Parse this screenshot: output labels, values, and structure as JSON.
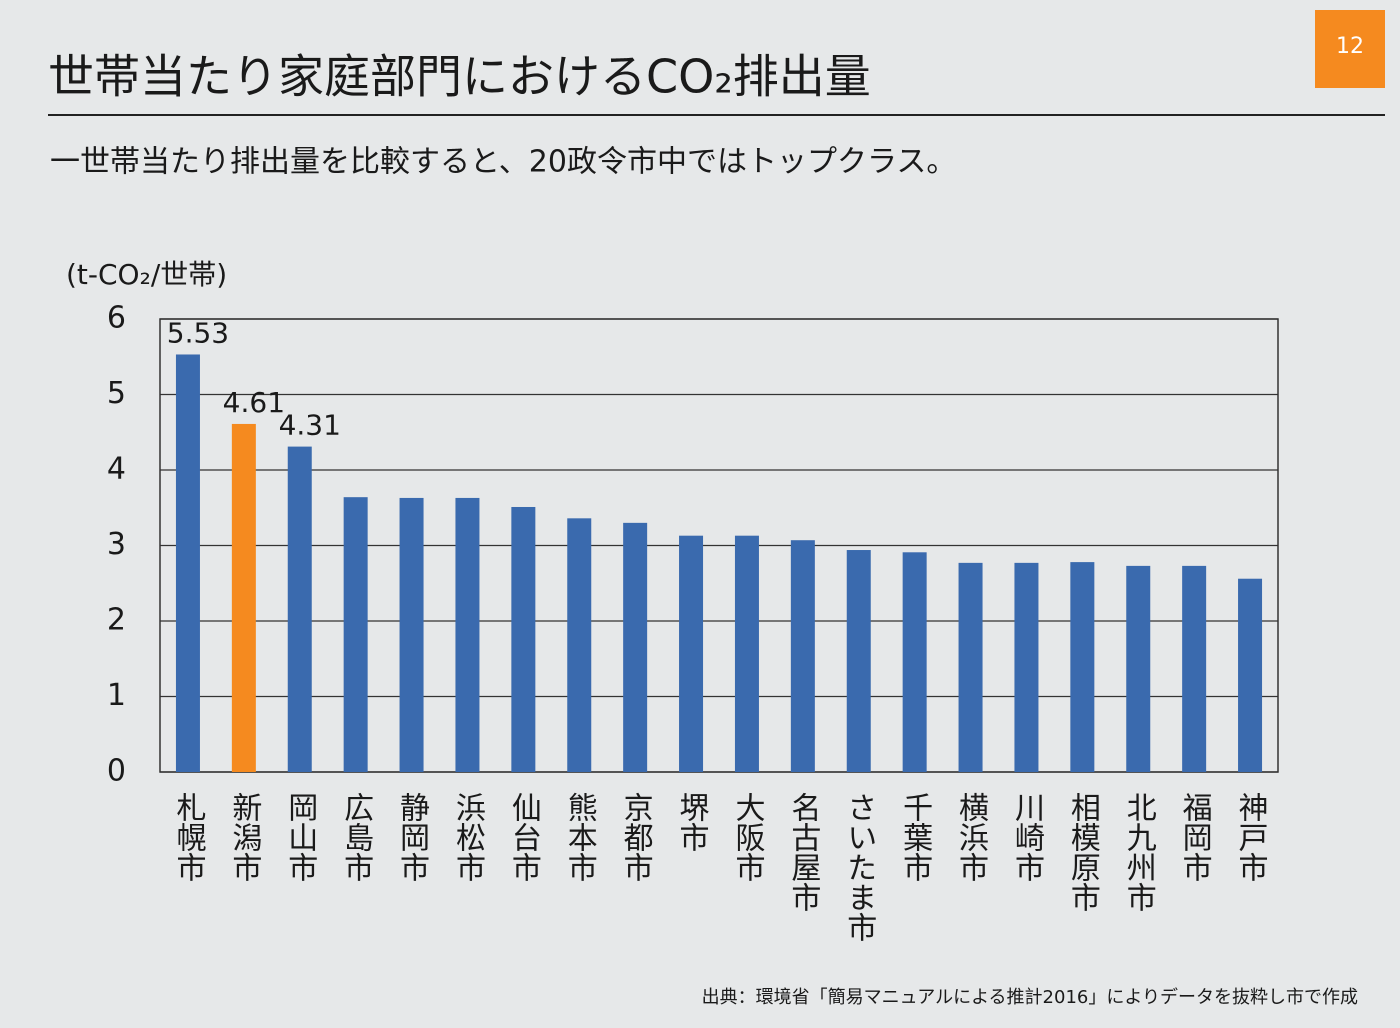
{
  "page_number": "12",
  "chart_data": {
    "type": "bar",
    "title": "世帯当たり家庭部門におけるCO₂排出量",
    "subtitle": "一世帯当たり排出量を比較すると、20政令市中ではトップクラス。",
    "y_axis_label": "(t-CO₂/世帯)",
    "source": "出典：環境省「簡易マニュアルによる推計2016」によりデータを抜粋し市で作成",
    "categories": [
      "札幌市",
      "新潟市",
      "岡山市",
      "広島市",
      "静岡市",
      "浜松市",
      "仙台市",
      "熊本市",
      "京都市",
      "堺市",
      "大阪市",
      "名古屋市",
      "さいたま市",
      "千葉市",
      "横浜市",
      "川崎市",
      "相模原市",
      "北九州市",
      "福岡市",
      "神戸市"
    ],
    "values": [
      5.53,
      4.61,
      4.31,
      3.64,
      3.63,
      3.63,
      3.51,
      3.36,
      3.3,
      3.13,
      3.13,
      3.07,
      2.94,
      2.91,
      2.77,
      2.77,
      2.78,
      2.73,
      2.73,
      2.56
    ],
    "value_labels": [
      "5.53",
      "4.61",
      "4.31",
      null,
      null,
      null,
      null,
      null,
      null,
      null,
      null,
      null,
      null,
      null,
      null,
      null,
      null,
      null,
      null,
      null
    ],
    "colors": [
      "#3a6aae",
      "#f58a1f",
      "#3a6aae",
      "#3a6aae",
      "#3a6aae",
      "#3a6aae",
      "#3a6aae",
      "#3a6aae",
      "#3a6aae",
      "#3a6aae",
      "#3a6aae",
      "#3a6aae",
      "#3a6aae",
      "#3a6aae",
      "#3a6aae",
      "#3a6aae",
      "#3a6aae",
      "#3a6aae",
      "#3a6aae",
      "#3a6aae"
    ],
    "ylim": [
      0,
      6
    ],
    "yticks": [
      0,
      1,
      2,
      3,
      4,
      5,
      6
    ],
    "grid": true
  }
}
